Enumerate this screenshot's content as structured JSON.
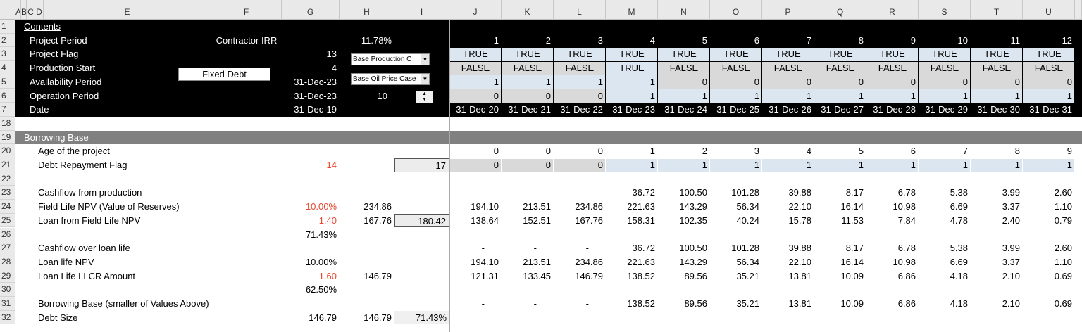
{
  "column_headers": [
    "A",
    "B",
    "C",
    "D",
    "E",
    "F",
    "G",
    "H",
    "I",
    "J",
    "K",
    "L",
    "M",
    "N",
    "O",
    "P",
    "Q",
    "R",
    "S",
    "T",
    "U"
  ],
  "rows": [
    {
      "row": "1",
      "cells": {
        "B": "Contents"
      }
    },
    {
      "row": "2",
      "cells": {
        "C": "Project Period",
        "F": "Contractor IRR",
        "H": "11.78%",
        "J": "1",
        "K": "2",
        "L": "3",
        "M": "4",
        "N": "5",
        "O": "6",
        "P": "7",
        "Q": "8",
        "R": "9",
        "S": "10",
        "T": "11",
        "U": "12"
      }
    },
    {
      "row": "3",
      "cells": {
        "C": "Project Flag",
        "G": "13",
        "J": "TRUE",
        "K": "TRUE",
        "L": "TRUE",
        "M": "TRUE",
        "N": "TRUE",
        "O": "TRUE",
        "P": "TRUE",
        "Q": "TRUE",
        "R": "TRUE",
        "S": "TRUE",
        "T": "TRUE",
        "U": "TRUE"
      }
    },
    {
      "row": "4",
      "cells": {
        "C": "Production Start",
        "G": "4",
        "J": "FALSE",
        "K": "FALSE",
        "L": "FALSE",
        "M": "TRUE",
        "N": "FALSE",
        "O": "FALSE",
        "P": "FALSE",
        "Q": "FALSE",
        "R": "FALSE",
        "S": "FALSE",
        "T": "FALSE",
        "U": "FALSE"
      }
    },
    {
      "row": "5",
      "cells": {
        "C": "Availability Period",
        "G": "31-Dec-23",
        "J": "1",
        "K": "1",
        "L": "1",
        "M": "1",
        "N": "0",
        "O": "0",
        "P": "0",
        "Q": "0",
        "R": "0",
        "S": "0",
        "T": "0",
        "U": "0"
      }
    },
    {
      "row": "6",
      "cells": {
        "C": "Operation Period",
        "G": "31-Dec-23",
        "H": "10",
        "J": "0",
        "K": "0",
        "L": "0",
        "M": "1",
        "N": "1",
        "O": "1",
        "P": "1",
        "Q": "1",
        "R": "1",
        "S": "1",
        "T": "1",
        "U": "1"
      }
    },
    {
      "row": "7",
      "cells": {
        "C": "Date",
        "G": "31-Dec-19",
        "J": "31-Dec-20",
        "K": "31-Dec-21",
        "L": "31-Dec-22",
        "M": "31-Dec-23",
        "N": "31-Dec-24",
        "O": "31-Dec-25",
        "P": "31-Dec-26",
        "Q": "31-Dec-27",
        "R": "31-Dec-28",
        "S": "31-Dec-29",
        "T": "31-Dec-30",
        "U": "31-Dec-31"
      }
    },
    {
      "row": "18",
      "cells": {}
    },
    {
      "row": "19",
      "cells": {
        "B": "Borrowing Base"
      }
    },
    {
      "row": "20",
      "cells": {
        "D": "Age of the project",
        "J": "0",
        "K": "0",
        "L": "0",
        "M": "1",
        "N": "2",
        "O": "3",
        "P": "4",
        "Q": "5",
        "R": "6",
        "S": "7",
        "T": "8",
        "U": "9"
      }
    },
    {
      "row": "21",
      "cells": {
        "D": "Debt Repayment Flag",
        "G": "14",
        "I": "17",
        "J": "0",
        "K": "0",
        "L": "0",
        "M": "1",
        "N": "1",
        "O": "1",
        "P": "1",
        "Q": "1",
        "R": "1",
        "S": "1",
        "T": "1",
        "U": "1"
      }
    },
    {
      "row": "22",
      "cells": {}
    },
    {
      "row": "23",
      "cells": {
        "D": "Cashflow from production",
        "J": "-",
        "K": "-",
        "L": "-",
        "M": "36.72",
        "N": "100.50",
        "O": "101.28",
        "P": "39.88",
        "Q": "8.17",
        "R": "6.78",
        "S": "5.38",
        "T": "3.99",
        "U": "2.60"
      }
    },
    {
      "row": "24",
      "cells": {
        "D": "Field Life NPV (Value of Reserves)",
        "G": "10.00%",
        "H": "234.86",
        "J": "194.10",
        "K": "213.51",
        "L": "234.86",
        "M": "221.63",
        "N": "143.29",
        "O": "56.34",
        "P": "22.10",
        "Q": "16.14",
        "R": "10.98",
        "S": "6.69",
        "T": "3.37",
        "U": "1.10"
      }
    },
    {
      "row": "25",
      "cells": {
        "D": "Loan from Field Life NPV",
        "G": "1.40",
        "H": "167.76",
        "I": "180.42",
        "J": "138.64",
        "K": "152.51",
        "L": "167.76",
        "M": "158.31",
        "N": "102.35",
        "O": "40.24",
        "P": "15.78",
        "Q": "11.53",
        "R": "7.84",
        "S": "4.78",
        "T": "2.40",
        "U": "0.79"
      }
    },
    {
      "row": "26",
      "cells": {
        "G": "71.43%"
      }
    },
    {
      "row": "27",
      "cells": {
        "D": "Cashflow over loan life",
        "J": "-",
        "K": "-",
        "L": "-",
        "M": "36.72",
        "N": "100.50",
        "O": "101.28",
        "P": "39.88",
        "Q": "8.17",
        "R": "6.78",
        "S": "5.38",
        "T": "3.99",
        "U": "2.60"
      }
    },
    {
      "row": "28",
      "cells": {
        "D": "Loan life NPV",
        "G": "10.00%",
        "J": "194.10",
        "K": "213.51",
        "L": "234.86",
        "M": "221.63",
        "N": "143.29",
        "O": "56.34",
        "P": "22.10",
        "Q": "16.14",
        "R": "10.98",
        "S": "6.69",
        "T": "3.37",
        "U": "1.10"
      }
    },
    {
      "row": "29",
      "cells": {
        "D": "Loan Life LLCR Amount",
        "G": "1.60",
        "H": "146.79",
        "J": "121.31",
        "K": "133.45",
        "L": "146.79",
        "M": "138.52",
        "N": "89.56",
        "O": "35.21",
        "P": "13.81",
        "Q": "10.09",
        "R": "6.86",
        "S": "4.18",
        "T": "2.10",
        "U": "0.69"
      }
    },
    {
      "row": "30",
      "cells": {
        "G": "62.50%"
      }
    },
    {
      "row": "31",
      "cells": {
        "D": "Borrowing Base (smaller of Values Above)",
        "J": "-",
        "K": "-",
        "L": "-",
        "M": "138.52",
        "N": "89.56",
        "O": "35.21",
        "P": "13.81",
        "Q": "10.09",
        "R": "6.86",
        "S": "4.18",
        "T": "2.10",
        "U": "0.69"
      }
    },
    {
      "row": "32",
      "cells": {
        "D": "Debt Size",
        "G": "146.79",
        "H": "146.79",
        "I": "71.43%"
      }
    }
  ],
  "controls": {
    "button": "Fixed Debt",
    "dropdown_1": "Base Production C",
    "dropdown_2": "Base Oil Price Case"
  }
}
